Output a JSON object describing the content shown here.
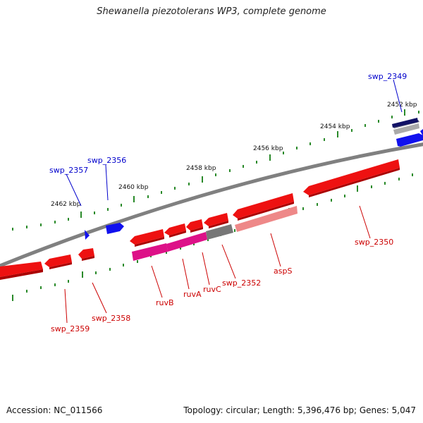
{
  "title": "Shewanella piezotolerans WP3, complete genome",
  "footer": {
    "accession": "Accession: NC_011566",
    "topology": "Topology: circular; Length: 5,396,476 bp; Genes: 5,047"
  },
  "ticks": [
    "2462 kbp",
    "2460 kbp",
    "2458 kbp",
    "2456 kbp",
    "2454 kbp",
    "2452 kbp"
  ],
  "labels": {
    "swp_2349": "swp_2349",
    "swp_2356": "swp_2356",
    "swp_2357": "swp_2357",
    "swp_2350": "swp_2350",
    "aspS": "aspS",
    "swp_2352": "swp_2352",
    "ruvC": "ruvC",
    "ruvA": "ruvA",
    "ruvB": "ruvB",
    "swp_2358": "swp_2358",
    "swp_2359": "swp_2359"
  },
  "colors": {
    "backbone": "#808080",
    "forward_label": "#0000cc",
    "reverse_label": "#cc0000",
    "red_gene": "#ee1111",
    "blue_gene": "#1111ee",
    "magenta_gene": "#dd1188",
    "pink_gene": "#ee8888",
    "grey_gene": "#777777",
    "navy_gene": "#111166",
    "tick": "#2a8a2a"
  }
}
